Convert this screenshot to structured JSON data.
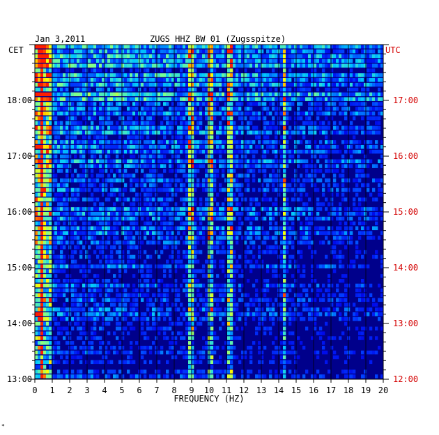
{
  "chart_data": {
    "type": "heatmap",
    "title": "ZUGS HHZ BW 01 (Zugsspitze)",
    "date": "Jan 3,2011",
    "xlabel": "FREQUENCY (HZ)",
    "left_axis_label": "CET",
    "right_axis_label": "UTC",
    "xlim": [
      0,
      20
    ],
    "x_ticks": [
      "0",
      "1",
      "2",
      "3",
      "4",
      "5",
      "6",
      "7",
      "8",
      "9",
      "10",
      "11",
      "12",
      "13",
      "14",
      "15",
      "16",
      "17",
      "18",
      "19",
      "20"
    ],
    "y_ticks_left": [
      "18:00",
      "17:00",
      "16:00",
      "15:00",
      "14:00",
      "13:00"
    ],
    "y_ticks_right": [
      "17:00",
      "16:00",
      "15:00",
      "14:00",
      "13:00",
      "12:00"
    ],
    "ylim_cet_hours": [
      13.0,
      19.0
    ],
    "colors": {
      "low": "#00008b",
      "mid_low": "#0000ff",
      "mid": "#00ffff",
      "mid_high": "#ffff00",
      "high": "#ff0000",
      "tick_right": "#d40000"
    },
    "grid": true,
    "rows": 70,
    "dominant_frequencies_hz": [
      0.4,
      9.0,
      10.1,
      11.2,
      14.3
    ],
    "footnote": "*"
  }
}
